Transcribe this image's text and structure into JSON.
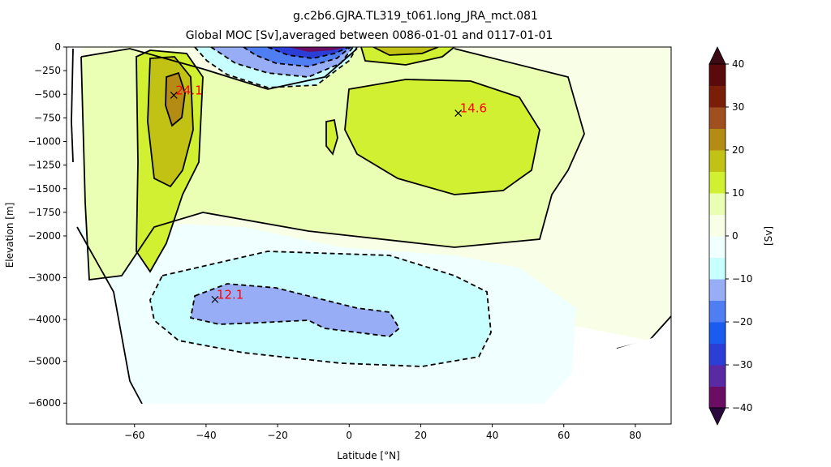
{
  "chart_data": {
    "type": "heatmap",
    "title": "g.c2b6.GJRA.TL319_t061.long_JRA_mct.081",
    "subtitle": "Global MOC [Sv],averaged between 0086-01-01 and 0117-01-01",
    "xlabel": "Latitude [°N]",
    "ylabel": "Elevation [m]",
    "xlim": [
      -79,
      90
    ],
    "x_ticks": [
      -60,
      -40,
      -20,
      0,
      20,
      40,
      60,
      80
    ],
    "x_tick_labels": [
      "−60",
      "−40",
      "−20",
      "0",
      "20",
      "40",
      "60",
      "80"
    ],
    "y_ticks_upper": [
      0,
      -250,
      -500,
      -750,
      -1000,
      -1250,
      -1500,
      -1750,
      -2000
    ],
    "y_ticks_lower": [
      -2000,
      -3000,
      -4000,
      -5000,
      -6000
    ],
    "y_tick_labels_upper": [
      "0",
      "−250",
      "−500",
      "−750",
      "−1000",
      "−1250",
      "−1500",
      "−1750",
      "−2000"
    ],
    "y_tick_labels_lower": [
      "−3000",
      "−4000",
      "−5000",
      "−6000"
    ],
    "colorbar": {
      "label": "[Sv]",
      "levels": [
        -40,
        -35,
        -30,
        -25,
        -20,
        -15,
        -10,
        -5,
        0,
        5,
        10,
        15,
        20,
        25,
        30,
        35,
        40
      ],
      "tick_values": [
        -40,
        -30,
        -20,
        -10,
        0,
        10,
        20,
        30,
        40
      ],
      "tick_labels": [
        "−40",
        "−30",
        "−20",
        "−10",
        "0",
        "10",
        "20",
        "30",
        "40"
      ],
      "colors": [
        "#6b0d63",
        "#5a2aa5",
        "#2b3fd6",
        "#1a5cf0",
        "#4f7df2",
        "#97aef7",
        "#c8ffff",
        "#f0ffff",
        "#f8ffe6",
        "#ebffb4",
        "#d2f032",
        "#c2c214",
        "#b48c14",
        "#a0501e",
        "#7a1e0a",
        "#5a0a0a"
      ],
      "under_color": "#2a0a3c",
      "over_color": "#3c0a14"
    },
    "annotations": [
      {
        "text": "24.1",
        "lat": -49,
        "depth": -510,
        "color": "#ff0000"
      },
      {
        "text": "14.6",
        "lat": 30.5,
        "depth": -700,
        "color": "#ff0000"
      },
      {
        "text": "12.1",
        "lat": -37.5,
        "depth": -3520,
        "color": "#ff0000"
      }
    ]
  }
}
